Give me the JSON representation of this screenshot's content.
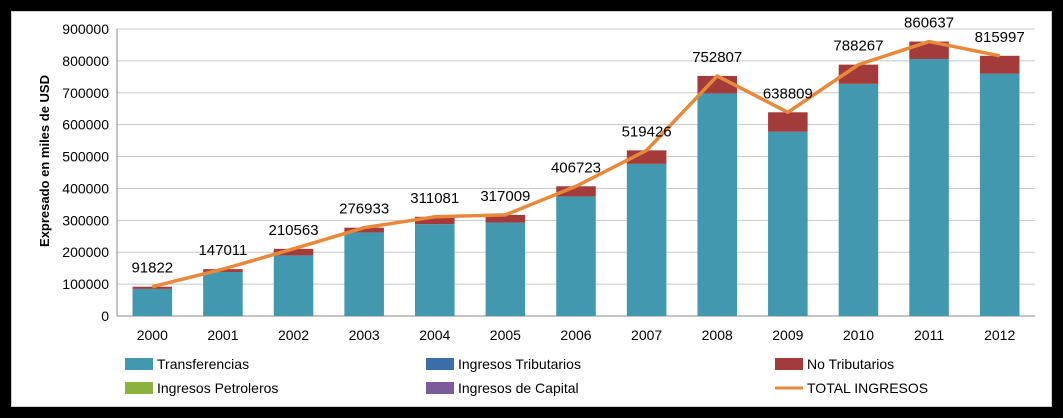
{
  "chart_data": {
    "type": "bar",
    "stacked": true,
    "ylabel": "Expresado en miles de USD",
    "xlabel": "",
    "ylim": [
      0,
      900000
    ],
    "yticks": [
      0,
      100000,
      200000,
      300000,
      400000,
      500000,
      600000,
      700000,
      800000,
      900000
    ],
    "grid": true,
    "legend_position": "bottom",
    "categories": [
      "2000",
      "2001",
      "2002",
      "2003",
      "2004",
      "2005",
      "2006",
      "2007",
      "2008",
      "2009",
      "2010",
      "2011",
      "2012"
    ],
    "series": [
      {
        "name": "Transferencias",
        "kind": "bar",
        "color": "#4198AF",
        "values": [
          85000,
          138000,
          190000,
          262000,
          288000,
          293000,
          375000,
          477000,
          698000,
          578000,
          728000,
          806000,
          760000
        ]
      },
      {
        "name": "Ingresos Tributarios",
        "kind": "bar",
        "color": "#3B6EA8",
        "values": [
          0,
          0,
          0,
          0,
          0,
          0,
          0,
          0,
          0,
          0,
          0,
          0,
          0
        ]
      },
      {
        "name": "No Tributarios",
        "kind": "bar",
        "color": "#A33B3A",
        "values": [
          6822,
          9011,
          20563,
          14933,
          23081,
          24009,
          31723,
          42426,
          54807,
          60809,
          60267,
          54637,
          55997
        ]
      },
      {
        "name": "Ingresos Petroleros",
        "kind": "bar",
        "color": "#8DB13E",
        "values": [
          0,
          0,
          0,
          0,
          0,
          0,
          0,
          0,
          0,
          0,
          0,
          0,
          0
        ]
      },
      {
        "name": "Ingresos de Capital",
        "kind": "bar",
        "color": "#7A5C9A",
        "values": [
          0,
          0,
          0,
          0,
          0,
          0,
          0,
          0,
          0,
          0,
          0,
          0,
          0
        ]
      },
      {
        "name": "TOTAL INGRESOS",
        "kind": "line",
        "color": "#E8883A",
        "values": [
          91822,
          147011,
          210563,
          276933,
          311081,
          317009,
          406723,
          519426,
          752807,
          638809,
          788267,
          860637,
          815997
        ]
      }
    ],
    "data_labels": [
      "91822",
      "147011",
      "210563",
      "276933",
      "311081",
      "317009",
      "406723",
      "519426",
      "752807",
      "638809",
      "788267",
      "860637",
      "815997"
    ]
  }
}
